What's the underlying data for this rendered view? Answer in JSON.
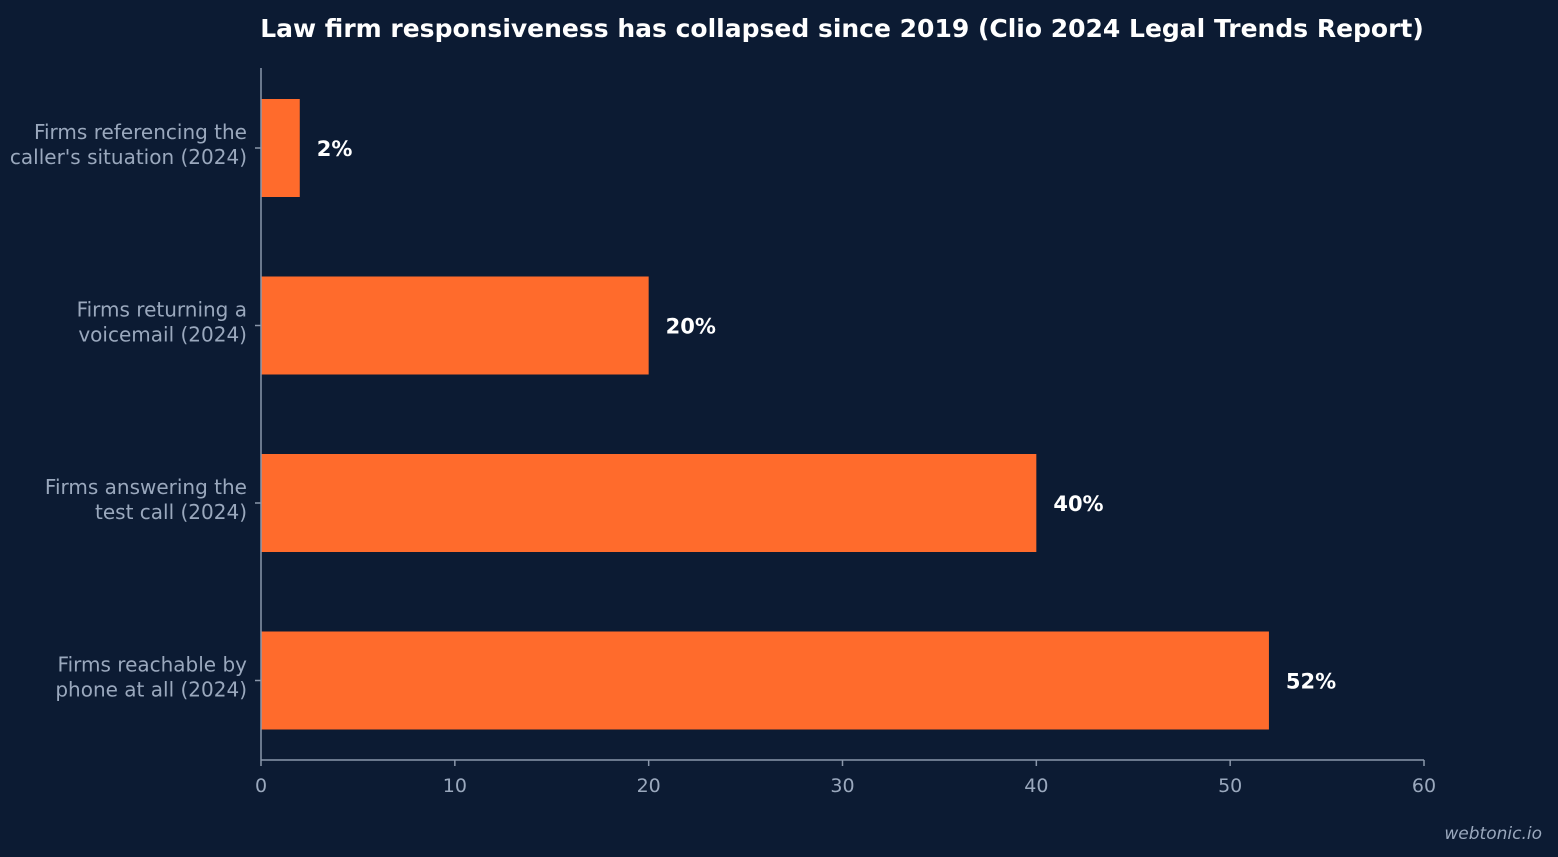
{
  "chart_data": {
    "type": "bar",
    "orientation": "horizontal",
    "title": "Law firm responsiveness has collapsed since 2019 (Clio 2024 Legal Trends Report)",
    "categories": [
      [
        "Firms referencing the",
        "caller's situation (2024)"
      ],
      [
        "Firms returning a",
        "voicemail (2024)"
      ],
      [
        "Firms answering the",
        "test call (2024)"
      ],
      [
        "Firms reachable by",
        "phone at all (2024)"
      ]
    ],
    "values": [
      2,
      20,
      40,
      52
    ],
    "value_labels": [
      "2%",
      "20%",
      "40%",
      "52%"
    ],
    "xlim": [
      0,
      60
    ],
    "xticks": [
      0,
      10,
      20,
      30,
      40,
      50,
      60
    ],
    "grid": false,
    "legend": "none"
  },
  "colors": {
    "background": "#0c1b33",
    "bar": "#ff6b2c",
    "axis": "#8a97ab",
    "text_muted": "#9aa8bd",
    "text_strong": "#ffffff"
  },
  "watermark": "webtonic.io"
}
